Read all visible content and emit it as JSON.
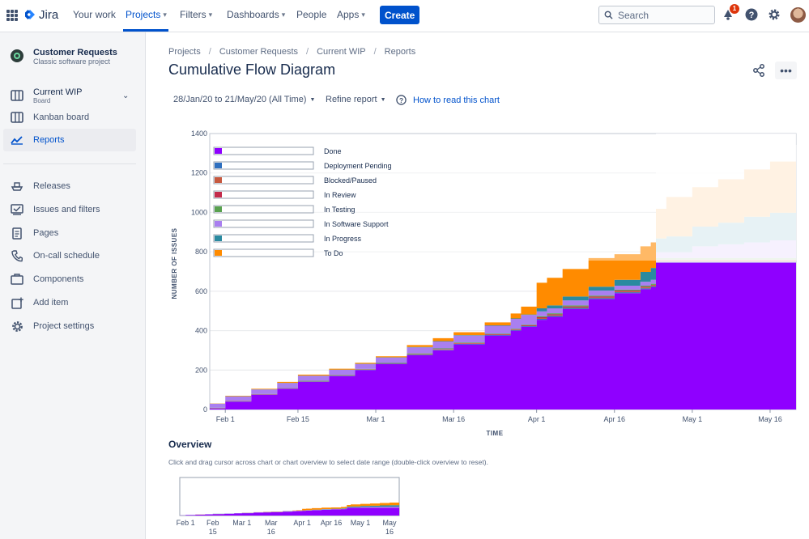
{
  "topnav": {
    "product": "Jira",
    "items": [
      {
        "label": "Your work",
        "chevron": false
      },
      {
        "label": "Projects",
        "chevron": true
      },
      {
        "label": "Filters",
        "chevron": true
      },
      {
        "label": "Dashboards",
        "chevron": true
      },
      {
        "label": "People",
        "chevron": false
      },
      {
        "label": "Apps",
        "chevron": true
      }
    ],
    "create_label": "Create",
    "search_placeholder": "Search",
    "notification_count": "1"
  },
  "sidebar": {
    "project_name": "Customer Requests",
    "project_type": "Classic software project",
    "board_title": "Current WIP",
    "board_sub": "Board",
    "items": [
      {
        "label": "Kanban board"
      },
      {
        "label": "Reports"
      }
    ],
    "secondary": [
      {
        "label": "Releases"
      },
      {
        "label": "Issues and filters"
      },
      {
        "label": "Pages"
      },
      {
        "label": "On-call schedule"
      },
      {
        "label": "Components"
      },
      {
        "label": "Add item"
      },
      {
        "label": "Project settings"
      }
    ]
  },
  "breadcrumbs": [
    "Projects",
    "Customer Requests",
    "Current WIP",
    "Reports"
  ],
  "page_title": "Cumulative Flow Diagram",
  "filters": {
    "date_range": "28/Jan/20 to 21/May/20 (All Time)",
    "refine": "Refine report",
    "help": "How to read this chart"
  },
  "overview": {
    "title": "Overview",
    "description": "Click and drag cursor across chart or chart overview to select date range (double-click overview to reset).",
    "x_ticks": [
      {
        "line1": "Feb 1",
        "line2": "",
        "day": 0
      },
      {
        "line1": "Feb",
        "line2": "15",
        "day": 14
      },
      {
        "line1": "Mar 1",
        "line2": "",
        "day": 29
      },
      {
        "line1": "Mar",
        "line2": "16",
        "day": 44
      },
      {
        "line1": "Apr 1",
        "line2": "",
        "day": 60
      },
      {
        "line1": "Apr 16",
        "line2": "",
        "day": 75
      },
      {
        "line1": "May 1",
        "line2": "",
        "day": 90
      },
      {
        "line1": "May",
        "line2": "16",
        "day": 105
      }
    ]
  },
  "colors": {
    "done": "#8f00ff",
    "deployment_pending": "#2e6fbf",
    "blocked": "#c7593f",
    "in_review": "#c42a4b",
    "in_testing": "#59a14f",
    "in_software_support": "#a97ff0",
    "in_progress": "#2a8aa0",
    "to_do": "#ff8b00"
  },
  "chart_data": {
    "type": "area",
    "title": "Cumulative Flow Diagram",
    "xlabel": "TIME",
    "ylabel": "NUMBER OF ISSUES",
    "ylim": [
      0,
      1400
    ],
    "yticks": [
      0,
      200,
      400,
      600,
      800,
      1000,
      1200,
      1400
    ],
    "x_start_day": -3,
    "x_end_day": 110,
    "xticks": [
      {
        "label": "Feb 1",
        "day": 0
      },
      {
        "label": "Feb 15",
        "day": 14
      },
      {
        "label": "Mar 1",
        "day": 29
      },
      {
        "label": "Mar 16",
        "day": 44
      },
      {
        "label": "Apr 1",
        "day": 60
      },
      {
        "label": "Apr 16",
        "day": 75
      },
      {
        "label": "May 1",
        "day": 90
      },
      {
        "label": "May 16",
        "day": 105
      }
    ],
    "legend": [
      "Done",
      "Deployment Pending",
      "Blocked/Paused",
      "In Review",
      "In Testing",
      "In Software Support",
      "In Progress",
      "To Do"
    ],
    "days": [
      -3,
      0,
      5,
      10,
      14,
      20,
      25,
      29,
      35,
      40,
      44,
      50,
      55,
      57,
      60,
      62,
      65,
      70,
      75,
      80,
      82,
      83,
      85,
      90,
      95,
      100,
      105,
      110
    ],
    "series": [
      {
        "name": "Done",
        "values": [
          5,
          40,
          75,
          105,
          140,
          170,
          200,
          230,
          275,
          300,
          330,
          375,
          400,
          420,
          455,
          470,
          510,
          560,
          590,
          610,
          620,
          745,
          745,
          745,
          745,
          745,
          745,
          745
        ]
      },
      {
        "name": "Deployment Pending",
        "values": [
          1,
          1,
          1,
          1,
          2,
          2,
          2,
          2,
          3,
          3,
          3,
          3,
          3,
          3,
          5,
          5,
          5,
          5,
          5,
          5,
          5,
          5,
          5,
          5,
          5,
          5,
          5,
          5
        ]
      },
      {
        "name": "Blocked/Paused",
        "values": [
          1,
          1,
          1,
          1,
          1,
          1,
          1,
          1,
          2,
          2,
          2,
          2,
          2,
          2,
          4,
          4,
          4,
          4,
          4,
          4,
          4,
          5,
          5,
          5,
          5,
          5,
          5,
          5
        ]
      },
      {
        "name": "In Review",
        "values": [
          1,
          1,
          1,
          1,
          1,
          1,
          1,
          1,
          2,
          2,
          2,
          2,
          2,
          2,
          4,
          4,
          4,
          4,
          4,
          4,
          4,
          5,
          5,
          5,
          5,
          5,
          5,
          5
        ]
      },
      {
        "name": "In Testing",
        "values": [
          1,
          1,
          1,
          1,
          2,
          2,
          2,
          2,
          3,
          3,
          3,
          3,
          3,
          3,
          5,
          5,
          5,
          5,
          5,
          5,
          5,
          8,
          8,
          8,
          8,
          8,
          8,
          8
        ]
      },
      {
        "name": "In Software Support",
        "values": [
          20,
          22,
          22,
          25,
          25,
          25,
          25,
          28,
          30,
          35,
          35,
          40,
          50,
          50,
          25,
          25,
          25,
          25,
          20,
          20,
          20,
          30,
          30,
          60,
          70,
          80,
          90,
          100
        ]
      },
      {
        "name": "In Progress",
        "values": [
          1,
          1,
          1,
          1,
          1,
          1,
          1,
          1,
          2,
          2,
          2,
          2,
          2,
          2,
          15,
          15,
          20,
          20,
          30,
          50,
          60,
          70,
          80,
          100,
          110,
          130,
          140,
          150
        ]
      },
      {
        "name": "To Do",
        "values": [
          1,
          3,
          3,
          5,
          5,
          5,
          5,
          5,
          10,
          15,
          15,
          15,
          25,
          40,
          130,
          140,
          140,
          145,
          130,
          130,
          130,
          150,
          200,
          200,
          220,
          240,
          260,
          300
        ]
      }
    ]
  }
}
